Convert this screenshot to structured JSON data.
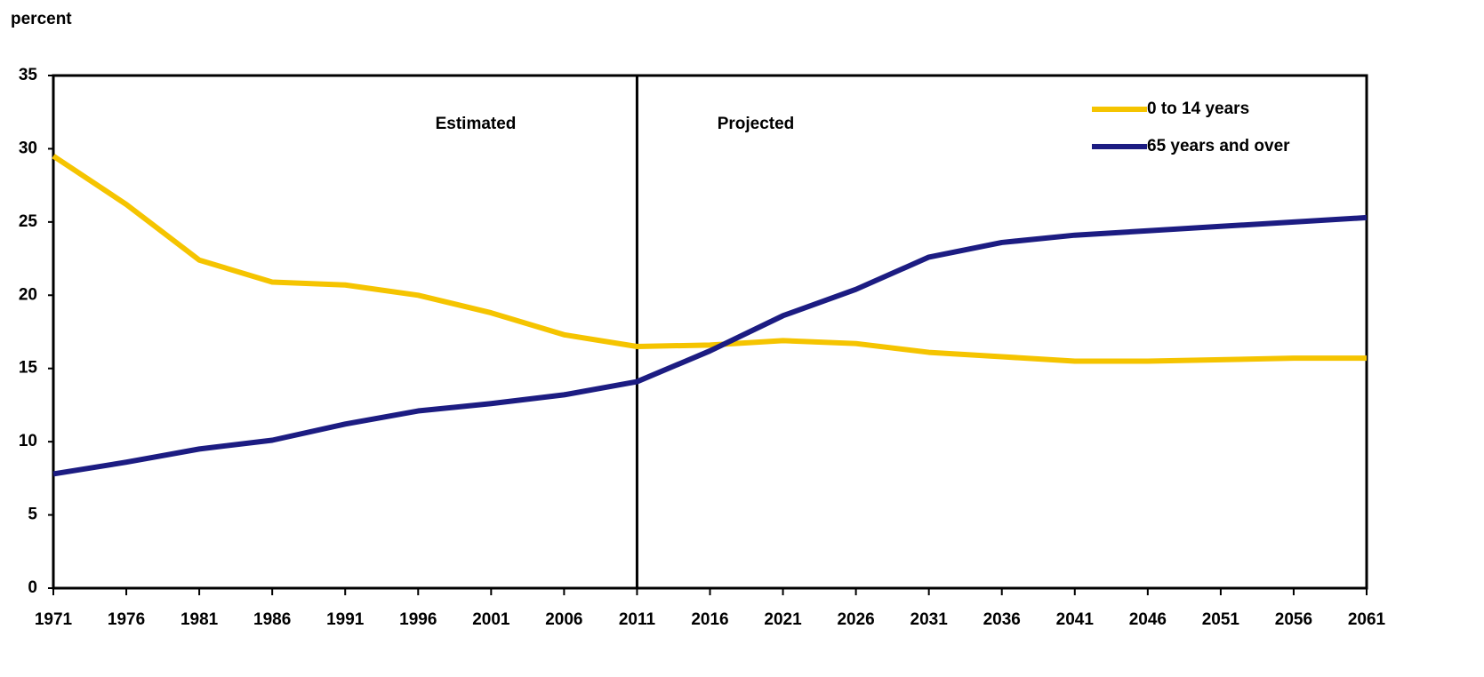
{
  "chart_data": {
    "type": "line",
    "ylabel": "percent",
    "annotations": [
      "Estimated",
      "Projected"
    ],
    "divider_x": 2011,
    "x": [
      1971,
      1976,
      1981,
      1986,
      1991,
      1996,
      2001,
      2006,
      2011,
      2016,
      2021,
      2026,
      2031,
      2036,
      2041,
      2046,
      2051,
      2056,
      2061
    ],
    "series": [
      {
        "name": "0 to 14 years",
        "color": "#f5c400",
        "values": [
          29.5,
          26.2,
          22.4,
          20.9,
          20.7,
          20.0,
          18.8,
          17.3,
          16.5,
          16.6,
          16.9,
          16.7,
          16.1,
          15.8,
          15.5,
          15.5,
          15.6,
          15.7,
          15.7
        ]
      },
      {
        "name": "65 years and over",
        "color": "#1c1c82",
        "values": [
          7.8,
          8.6,
          9.5,
          10.1,
          11.2,
          12.1,
          12.6,
          13.2,
          14.1,
          16.2,
          18.6,
          20.4,
          22.6,
          23.6,
          24.1,
          24.4,
          24.7,
          25.0,
          25.3
        ]
      }
    ],
    "xlim": [
      1971,
      2061
    ],
    "xticks": [
      1971,
      1976,
      1981,
      1986,
      1991,
      1996,
      2001,
      2006,
      2011,
      2016,
      2021,
      2026,
      2031,
      2036,
      2041,
      2046,
      2051,
      2056,
      2061
    ],
    "ylim": [
      0,
      35
    ],
    "yticks": [
      0,
      5,
      10,
      15,
      20,
      25,
      30,
      35
    ],
    "legend": "top-right"
  }
}
